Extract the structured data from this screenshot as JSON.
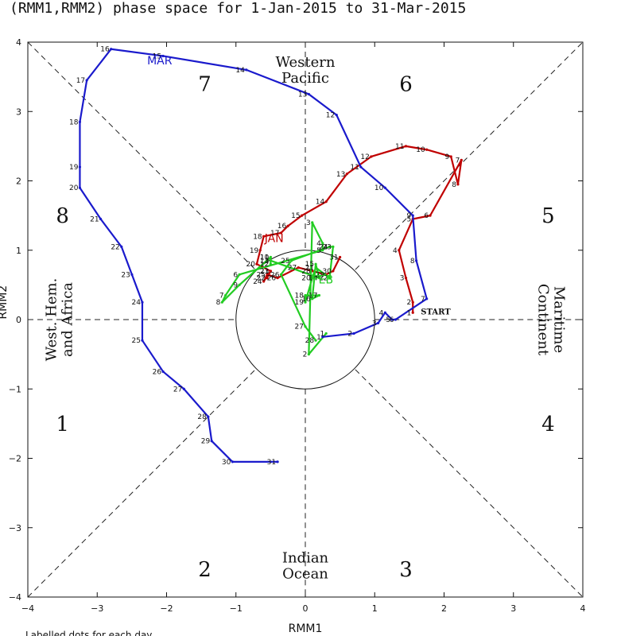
{
  "title": "(RMM1,RMM2) phase space for  1-Jan-2015 to 31-Mar-2015",
  "footnote": "Labelled dots for each day",
  "chart_data": {
    "type": "line",
    "xlabel": "RMM1",
    "ylabel": "RMM2",
    "xlim": [
      -4,
      4
    ],
    "ylim": [
      -4,
      4
    ],
    "x_ticks": [
      "−4",
      "−3",
      "−2",
      "−1",
      "0",
      "1",
      "2",
      "3",
      "4"
    ],
    "y_ticks": [
      "4",
      "3",
      "2",
      "1",
      "0",
      "−1",
      "−2",
      "−3",
      "−4"
    ],
    "start_label": "START",
    "phases": [
      {
        "label": "1",
        "x": -3.5,
        "y": -1.5
      },
      {
        "label": "2",
        "x": -1.45,
        "y": -3.6
      },
      {
        "label": "3",
        "x": 1.45,
        "y": -3.6
      },
      {
        "label": "4",
        "x": 3.5,
        "y": -1.5
      },
      {
        "label": "5",
        "x": 3.5,
        "y": 1.5
      },
      {
        "label": "6",
        "x": 1.45,
        "y": 3.4
      },
      {
        "label": "7",
        "x": -1.45,
        "y": 3.4
      },
      {
        "label": "8",
        "x": -3.5,
        "y": 1.5
      }
    ],
    "regions": [
      {
        "lines": [
          "Western",
          "Pacific"
        ],
        "x": 0,
        "y": 3.6,
        "rotate": 0
      },
      {
        "lines": [
          "Indian",
          "Ocean"
        ],
        "x": 0,
        "y": -3.55,
        "rotate": 0
      },
      {
        "lines": [
          "West. Hem.",
          "and Africa"
        ],
        "x": -3.55,
        "y": 0,
        "rotate": -90
      },
      {
        "lines": [
          "Maritime",
          "Continent"
        ],
        "x": 3.55,
        "y": 0,
        "rotate": 90
      }
    ],
    "series": [
      {
        "name": "JAN",
        "color": "#c00000",
        "label_pos": [
          -0.45,
          1.12
        ],
        "x": [
          1.55,
          1.55,
          1.45,
          1.35,
          1.55,
          1.8,
          2.25,
          2.2,
          2.1,
          1.75,
          1.45,
          0.95,
          0.6,
          0.3,
          -0.05,
          -0.25,
          -0.35,
          -0.6,
          -0.65,
          -0.7,
          -0.5,
          -0.55,
          -0.5,
          -0.6,
          -0.55,
          -0.4,
          -0.1,
          0.1,
          0.3,
          0.4,
          0.5
        ],
        "y": [
          0.1,
          0.25,
          0.6,
          1.0,
          1.45,
          1.5,
          2.3,
          1.95,
          2.35,
          2.45,
          2.5,
          2.35,
          2.1,
          1.7,
          1.5,
          1.35,
          1.25,
          1.2,
          1.0,
          0.8,
          0.7,
          0.6,
          0.7,
          0.55,
          0.65,
          0.6,
          0.75,
          0.7,
          0.65,
          0.7,
          0.9
        ],
        "days": [
          "1",
          "2",
          "3",
          "4",
          "5",
          "6",
          "7",
          "8",
          "9",
          "10",
          "11",
          "12",
          "13",
          "14",
          "15",
          "16",
          "17",
          "18",
          "19",
          "20",
          "21",
          "22",
          "23",
          "24",
          "25",
          "26",
          "27",
          "28",
          "29",
          "30",
          "31"
        ]
      },
      {
        "name": "FEB",
        "color": "#22cc22",
        "label_pos": [
          0.25,
          0.52
        ],
        "x": [
          0.3,
          0.05,
          0.1,
          0.25,
          0.25,
          -0.95,
          -1.15,
          -1.2,
          -0.95,
          -0.5,
          -0.5,
          -0.5,
          -0.5,
          0.2,
          0.15,
          0.1,
          0.2,
          0.0,
          0.0,
          0.1,
          0.15,
          0.35,
          0.4,
          0.35,
          -0.2,
          -0.35,
          0.0,
          0.15
        ],
        "y": [
          -0.2,
          -0.5,
          1.4,
          1.1,
          1.0,
          0.65,
          0.35,
          0.25,
          0.5,
          0.9,
          0.9,
          0.8,
          0.85,
          0.6,
          0.8,
          0.3,
          0.35,
          0.35,
          0.25,
          0.6,
          0.75,
          0.6,
          1.05,
          1.05,
          0.85,
          0.65,
          -0.1,
          -0.3
        ],
        "days": [
          "1",
          "2",
          "3",
          "4",
          "5",
          "6",
          "7",
          "8",
          "9",
          "10",
          "11",
          "12",
          "13",
          "14",
          "15",
          "16",
          "17",
          "18",
          "19",
          "20",
          "21",
          "22",
          "23",
          "24",
          "25",
          "26",
          "27",
          "28"
        ]
      },
      {
        "name": "MAR",
        "color": "#1a1acc",
        "label_pos": [
          -2.1,
          3.68
        ],
        "x": [
          0.25,
          0.7,
          1.05,
          1.15,
          1.25,
          1.3,
          1.75,
          1.6,
          1.55,
          1.15,
          0.8,
          0.45,
          0.05,
          -0.85,
          -2.05,
          -2.8,
          -3.15,
          -3.25,
          -3.25,
          -3.25,
          -2.95,
          -2.65,
          -2.5,
          -2.35,
          -2.35,
          -2.05,
          -1.75,
          -1.4,
          -1.35,
          -1.05,
          -0.4
        ],
        "y": [
          -0.25,
          -0.2,
          -0.05,
          0.1,
          0.0,
          0.0,
          0.3,
          0.85,
          1.5,
          1.9,
          2.2,
          2.95,
          3.25,
          3.6,
          3.8,
          3.9,
          3.45,
          2.85,
          2.2,
          1.9,
          1.45,
          1.05,
          0.65,
          0.25,
          -0.3,
          -0.75,
          -1.0,
          -1.4,
          -1.75,
          -2.05,
          -2.05
        ],
        "days": [
          "1",
          "2",
          "3",
          "4",
          "5",
          "6",
          "7",
          "8",
          "9",
          "10",
          "11",
          "12",
          "13",
          "14",
          "15",
          "16",
          "17",
          "18",
          "19",
          "20",
          "21",
          "22",
          "23",
          "24",
          "25",
          "26",
          "27",
          "28",
          "29",
          "30",
          "31"
        ]
      }
    ]
  }
}
